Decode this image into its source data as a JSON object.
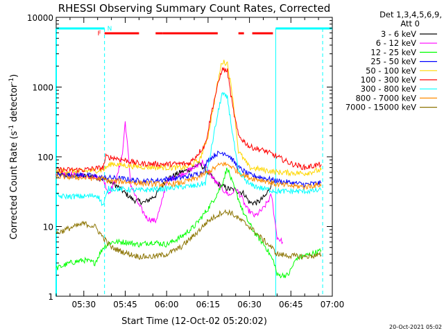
{
  "chart_data": {
    "type": "line",
    "title": "RHESSI Observing Summary Count Rates, Corrected",
    "xlabel": "Start Time (12-Oct-02 05:20:02)",
    "ylabel_main": "Corrected Count Rate (s",
    "ylabel_sup1": "-1",
    "ylabel_mid": " detector",
    "ylabel_sup2": "-1",
    "ylabel_end": ")",
    "y_scale": "log",
    "ylim": [
      1,
      10000
    ],
    "xlim_minutes": [
      0,
      100
    ],
    "x_ticks": [
      {
        "t": 10,
        "label": "05:30"
      },
      {
        "t": 25,
        "label": "05:45"
      },
      {
        "t": 40,
        "label": "06:00"
      },
      {
        "t": 55,
        "label": "06:15"
      },
      {
        "t": 70,
        "label": "06:30"
      },
      {
        "t": 85,
        "label": "06:45"
      },
      {
        "t": 100,
        "label": "07:00"
      }
    ],
    "y_ticks": [
      {
        "v": 1,
        "label": "1"
      },
      {
        "v": 10,
        "label": "10"
      },
      {
        "v": 100,
        "label": "100"
      },
      {
        "v": 1000,
        "label": "1000"
      },
      {
        "v": 10000,
        "label": "10000"
      }
    ],
    "legend_header_1": "Det 1,3,4,5,6,9,",
    "legend_header_2": "Att 0",
    "legend_position": "top-right outside",
    "flags": {
      "night_label": "N",
      "flare_label": "F",
      "night_start_min": 17.5,
      "night_end_min": 79.5,
      "plot_end_min": 96.5,
      "flare_segments": [
        [
          17.5,
          30
        ],
        [
          36,
          38.5
        ],
        [
          38.5,
          58.5
        ],
        [
          66,
          68
        ],
        [
          71,
          78.5
        ]
      ],
      "night_color": "#00ffff",
      "flare_color": "#ff0000"
    },
    "series": [
      {
        "name": "3 - 6 keV",
        "color": "#000000",
        "points": [
          [
            0,
            55
          ],
          [
            8,
            53
          ],
          [
            14,
            52
          ],
          [
            17,
            48
          ],
          [
            19,
            45
          ],
          [
            22,
            38
          ],
          [
            25,
            30
          ],
          [
            28,
            24
          ],
          [
            32,
            22
          ],
          [
            36,
            28
          ],
          [
            40,
            48
          ],
          [
            45,
            60
          ],
          [
            48,
            65
          ],
          [
            52,
            80
          ],
          [
            55,
            60
          ],
          [
            58,
            42
          ],
          [
            62,
            35
          ],
          [
            65,
            33
          ],
          [
            68,
            30
          ],
          [
            70,
            22
          ],
          [
            73,
            22
          ],
          [
            76,
            28
          ],
          [
            79,
            50
          ],
          [
            80,
            null
          ]
        ]
      },
      {
        "name": "6 - 12 keV",
        "color": "#ff00ff",
        "points": [
          [
            0,
            58
          ],
          [
            8,
            55
          ],
          [
            14,
            52
          ],
          [
            17,
            48
          ],
          [
            19,
            30
          ],
          [
            22,
            50
          ],
          [
            24,
            110
          ],
          [
            25,
            320
          ],
          [
            26,
            120
          ],
          [
            27,
            40
          ],
          [
            30,
            20
          ],
          [
            33,
            13
          ],
          [
            36,
            12
          ],
          [
            38,
            20
          ],
          [
            40,
            45
          ],
          [
            45,
            55
          ],
          [
            50,
            70
          ],
          [
            53,
            85
          ],
          [
            56,
            55
          ],
          [
            58,
            42
          ],
          [
            61,
            32
          ],
          [
            63,
            28
          ],
          [
            65,
            35
          ],
          [
            67,
            27
          ],
          [
            69,
            18
          ],
          [
            72,
            14
          ],
          [
            75,
            18
          ],
          [
            78,
            28
          ],
          [
            80,
            7
          ],
          [
            82,
            6
          ]
        ]
      },
      {
        "name": "12 - 25 keV",
        "color": "#00ff00",
        "points": [
          [
            0,
            2.5
          ],
          [
            5,
            3
          ],
          [
            10,
            3.3
          ],
          [
            14,
            3
          ],
          [
            17,
            5
          ],
          [
            20,
            6
          ],
          [
            25,
            6
          ],
          [
            30,
            5.5
          ],
          [
            35,
            6
          ],
          [
            40,
            5.5
          ],
          [
            45,
            7
          ],
          [
            50,
            10
          ],
          [
            55,
            18
          ],
          [
            58,
            28
          ],
          [
            60,
            40
          ],
          [
            62,
            70
          ],
          [
            64,
            40
          ],
          [
            66,
            25
          ],
          [
            68,
            15
          ],
          [
            72,
            8
          ],
          [
            76,
            5
          ],
          [
            79,
            3
          ],
          [
            80,
            2
          ],
          [
            84,
            2
          ],
          [
            87,
            3.5
          ],
          [
            92,
            4
          ],
          [
            96,
            4.5
          ]
        ]
      },
      {
        "name": "25 - 50 keV",
        "color": "#0000ff",
        "points": [
          [
            0,
            55
          ],
          [
            10,
            55
          ],
          [
            17,
            50
          ],
          [
            19,
            50
          ],
          [
            25,
            48
          ],
          [
            30,
            45
          ],
          [
            35,
            45
          ],
          [
            40,
            48
          ],
          [
            45,
            50
          ],
          [
            50,
            55
          ],
          [
            53,
            60
          ],
          [
            55,
            90
          ],
          [
            58,
            110
          ],
          [
            61,
            115
          ],
          [
            63,
            100
          ],
          [
            66,
            70
          ],
          [
            70,
            55
          ],
          [
            75,
            50
          ],
          [
            80,
            45
          ],
          [
            90,
            40
          ],
          [
            96,
            42
          ]
        ]
      },
      {
        "name": "50 - 100 keV",
        "color": "#ffd700",
        "points": [
          [
            0,
            62
          ],
          [
            10,
            62
          ],
          [
            17,
            65
          ],
          [
            20,
            80
          ],
          [
            25,
            75
          ],
          [
            30,
            72
          ],
          [
            40,
            70
          ],
          [
            47,
            70
          ],
          [
            52,
            90
          ],
          [
            55,
            200
          ],
          [
            58,
            900
          ],
          [
            60,
            2300
          ],
          [
            62,
            2200
          ],
          [
            64,
            700
          ],
          [
            66,
            120
          ],
          [
            70,
            70
          ],
          [
            75,
            65
          ],
          [
            80,
            60
          ],
          [
            90,
            58
          ],
          [
            96,
            65
          ]
        ]
      },
      {
        "name": "100 - 300 keV",
        "color": "#ff0000",
        "points": [
          [
            0,
            65
          ],
          [
            10,
            65
          ],
          [
            17,
            70
          ],
          [
            18,
            100
          ],
          [
            22,
            95
          ],
          [
            30,
            80
          ],
          [
            40,
            78
          ],
          [
            48,
            80
          ],
          [
            50,
            95
          ],
          [
            54,
            150
          ],
          [
            57,
            600
          ],
          [
            60,
            1800
          ],
          [
            62,
            1700
          ],
          [
            64,
            500
          ],
          [
            66,
            200
          ],
          [
            70,
            140
          ],
          [
            76,
            120
          ],
          [
            80,
            100
          ],
          [
            85,
            80
          ],
          [
            90,
            70
          ],
          [
            96,
            78
          ]
        ]
      },
      {
        "name": "300 - 800 keV",
        "color": "#00ffff",
        "points": [
          [
            0,
            27
          ],
          [
            10,
            27
          ],
          [
            15,
            28
          ],
          [
            17,
            20
          ],
          [
            19,
            35
          ],
          [
            25,
            34
          ],
          [
            30,
            33
          ],
          [
            40,
            35
          ],
          [
            45,
            37
          ],
          [
            50,
            38
          ],
          [
            54,
            42
          ],
          [
            57,
            200
          ],
          [
            60,
            800
          ],
          [
            62,
            700
          ],
          [
            64,
            200
          ],
          [
            66,
            60
          ],
          [
            70,
            40
          ],
          [
            75,
            35
          ],
          [
            80,
            32
          ],
          [
            90,
            32
          ],
          [
            96,
            33
          ]
        ]
      },
      {
        "name": "800 - 7000 keV",
        "color": "#ff8c00",
        "points": [
          [
            0,
            52
          ],
          [
            10,
            50
          ],
          [
            17,
            48
          ],
          [
            19,
            45
          ],
          [
            25,
            44
          ],
          [
            30,
            42
          ],
          [
            40,
            40
          ],
          [
            45,
            42
          ],
          [
            50,
            48
          ],
          [
            55,
            60
          ],
          [
            60,
            80
          ],
          [
            63,
            75
          ],
          [
            66,
            60
          ],
          [
            70,
            50
          ],
          [
            76,
            45
          ],
          [
            80,
            40
          ],
          [
            90,
            37
          ],
          [
            96,
            40
          ]
        ]
      },
      {
        "name": "7000 - 15000 keV",
        "color": "#8b7300",
        "points": [
          [
            0,
            8
          ],
          [
            5,
            9.5
          ],
          [
            10,
            11
          ],
          [
            14,
            10
          ],
          [
            17,
            7
          ],
          [
            20,
            5
          ],
          [
            25,
            4.2
          ],
          [
            30,
            3.7
          ],
          [
            35,
            3.7
          ],
          [
            40,
            4
          ],
          [
            45,
            5
          ],
          [
            50,
            7.5
          ],
          [
            55,
            12
          ],
          [
            60,
            16
          ],
          [
            63,
            16
          ],
          [
            66,
            13
          ],
          [
            70,
            10
          ],
          [
            74,
            7
          ],
          [
            78,
            5
          ],
          [
            80,
            4
          ],
          [
            85,
            3.8
          ],
          [
            90,
            3.7
          ],
          [
            96,
            3.9
          ]
        ]
      }
    ]
  },
  "footer_date": "20-Oct-2021 05:02"
}
